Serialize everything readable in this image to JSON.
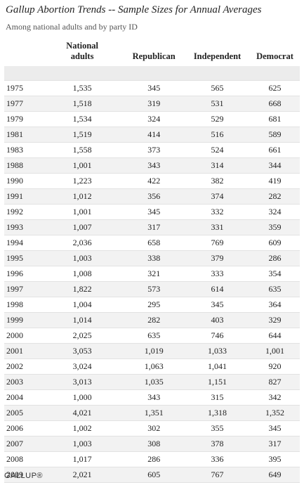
{
  "header": {
    "title": "Gallup Abortion Trends -- Sample Sizes for Annual Averages",
    "subtitle": "Among national adults and by party ID"
  },
  "table": {
    "columns": [
      "National adults",
      "Republican",
      "Independent",
      "Democrat"
    ],
    "rows": [
      [
        "1975",
        "1,535",
        "345",
        "565",
        "625"
      ],
      [
        "1977",
        "1,518",
        "319",
        "531",
        "668"
      ],
      [
        "1979",
        "1,534",
        "324",
        "529",
        "681"
      ],
      [
        "1981",
        "1,519",
        "414",
        "516",
        "589"
      ],
      [
        "1983",
        "1,558",
        "373",
        "524",
        "661"
      ],
      [
        "1988",
        "1,001",
        "343",
        "314",
        "344"
      ],
      [
        "1990",
        "1,223",
        "422",
        "382",
        "419"
      ],
      [
        "1991",
        "1,012",
        "356",
        "374",
        "282"
      ],
      [
        "1992",
        "1,001",
        "345",
        "332",
        "324"
      ],
      [
        "1993",
        "1,007",
        "317",
        "331",
        "359"
      ],
      [
        "1994",
        "2,036",
        "658",
        "769",
        "609"
      ],
      [
        "1995",
        "1,003",
        "338",
        "379",
        "286"
      ],
      [
        "1996",
        "1,008",
        "321",
        "333",
        "354"
      ],
      [
        "1997",
        "1,822",
        "573",
        "614",
        "635"
      ],
      [
        "1998",
        "1,004",
        "295",
        "345",
        "364"
      ],
      [
        "1999",
        "1,014",
        "282",
        "403",
        "329"
      ],
      [
        "2000",
        "2,025",
        "635",
        "746",
        "644"
      ],
      [
        "2001",
        "3,053",
        "1,019",
        "1,033",
        "1,001"
      ],
      [
        "2002",
        "3,024",
        "1,063",
        "1,041",
        "920"
      ],
      [
        "2003",
        "3,013",
        "1,035",
        "1,151",
        "827"
      ],
      [
        "2004",
        "1,000",
        "343",
        "315",
        "342"
      ],
      [
        "2005",
        "4,021",
        "1,351",
        "1,318",
        "1,352"
      ],
      [
        "2006",
        "1,002",
        "302",
        "355",
        "345"
      ],
      [
        "2007",
        "1,003",
        "308",
        "378",
        "317"
      ],
      [
        "2008",
        "1,017",
        "286",
        "336",
        "395"
      ],
      [
        "2009",
        "2,021",
        "605",
        "767",
        "649"
      ]
    ]
  },
  "footer": {
    "logo": "GALLUP®"
  }
}
